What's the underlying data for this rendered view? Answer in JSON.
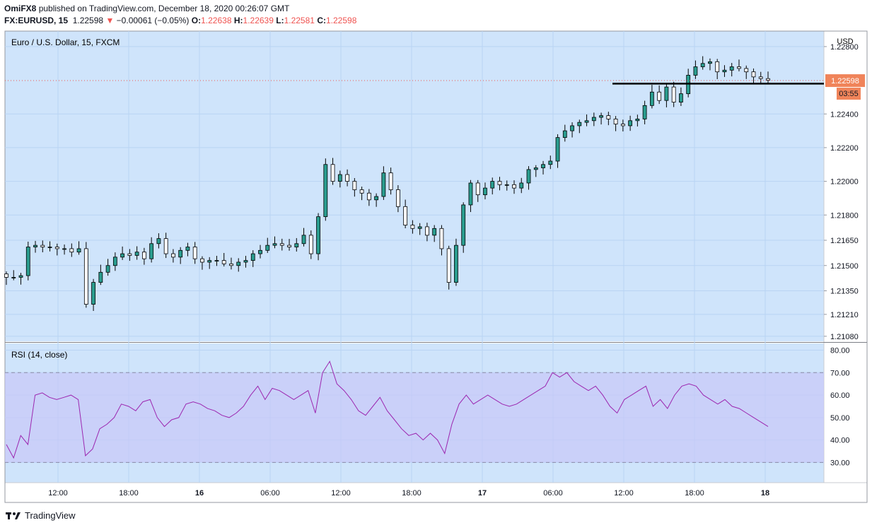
{
  "header": {
    "line1": {
      "user": "OmiFX8",
      "rest": " published on TradingView.com, December 18, 2020 00:26:07 GMT"
    },
    "line2": {
      "symbol": "FX:EURUSD, 15",
      "price": "1.22598",
      "arrow": "▼",
      "change": "−0.00061 (−0.05%)",
      "o_label": "O:",
      "o": "1.22638",
      "h_label": "H:",
      "h": "1.22639",
      "l_label": "L:",
      "l": "1.22581",
      "c_label": "C:",
      "c": "1.22598"
    }
  },
  "footer": {
    "brand": "TradingView"
  },
  "colors": {
    "bg": "#cfe4fb",
    "grid": "#b9d4f3",
    "candle_up": "#2a9d8f",
    "candle_wick": "#000000",
    "rsi_line": "#9c27b0",
    "rsi_band": "#c8c8f8",
    "price_badge": "#f0845a",
    "axis_text": "#131722"
  },
  "chart_data": [
    {
      "type": "candlestick",
      "title": "Euro / U.S. Dollar, 15, FXCM",
      "currency": "USD",
      "ylim": [
        1.2105,
        1.2285
      ],
      "y_ticks": [
        "1.22800",
        "1.22400",
        "1.22200",
        "1.22000",
        "1.21800",
        "1.21650",
        "1.21500",
        "1.21350",
        "1.21210",
        "1.21080"
      ],
      "x_ticks": [
        "12:00",
        "18:00",
        "16",
        "06:00",
        "12:00",
        "18:00",
        "17",
        "06:00",
        "12:00",
        "18:00",
        "18"
      ],
      "last_price": "1.22598",
      "countdown": "03:55",
      "horizontal_line": 1.2258,
      "close_path": [
        1.2143,
        1.2143,
        1.2144,
        1.2161,
        1.2162,
        1.2161,
        1.2161,
        1.216,
        1.216,
        1.2158,
        1.216,
        1.2127,
        1.214,
        1.2146,
        1.215,
        1.2155,
        1.2157,
        1.2156,
        1.2158,
        1.2154,
        1.2163,
        1.2166,
        1.2157,
        1.2155,
        1.2159,
        1.2161,
        1.2154,
        1.2152,
        1.2153,
        1.2153,
        1.2151,
        1.215,
        1.2152,
        1.2153,
        1.2157,
        1.2159,
        1.2162,
        1.2163,
        1.2162,
        1.2161,
        1.2163,
        1.2168,
        1.2157,
        1.2179,
        1.221,
        1.22,
        1.2204,
        1.22,
        1.2195,
        1.2193,
        1.2189,
        1.2191,
        1.2205,
        1.2195,
        1.2185,
        1.2174,
        1.2172,
        1.2173,
        1.2168,
        1.2172,
        1.216,
        1.214,
        1.2162,
        1.2186,
        1.2199,
        1.2192,
        1.2196,
        1.22,
        1.2198,
        1.2198,
        1.2196,
        1.2199,
        1.2207,
        1.2208,
        1.221,
        1.2212,
        1.2226,
        1.223,
        1.2233,
        1.2235,
        1.2236,
        1.2238,
        1.2239,
        1.2237,
        1.2234,
        1.2233,
        1.2236,
        1.2237,
        1.2245,
        1.2253,
        1.2248,
        1.2256,
        1.2247,
        1.2252,
        1.2263,
        1.2268,
        1.227,
        1.2271,
        1.2265,
        1.2266,
        1.2268,
        1.2267,
        1.2265,
        1.2262,
        1.2261,
        1.226
      ]
    },
    {
      "type": "line",
      "title": "RSI (14, close)",
      "ylim": [
        21,
        83
      ],
      "y_ticks": [
        "80.00",
        "70.00",
        "60.00",
        "50.00",
        "40.00",
        "30.00"
      ],
      "band": [
        30,
        70
      ],
      "values": [
        38,
        32,
        42,
        38,
        60,
        61,
        59,
        58,
        59,
        60,
        58,
        33,
        36,
        45,
        47,
        50,
        56,
        55,
        53,
        57,
        58,
        50,
        46,
        49,
        50,
        56,
        57,
        56,
        54,
        53,
        51,
        50,
        52,
        55,
        60,
        64,
        58,
        63,
        62,
        60,
        58,
        60,
        62,
        52,
        70,
        75,
        65,
        62,
        58,
        53,
        51,
        55,
        59,
        53,
        49,
        45,
        42,
        43,
        40,
        43,
        40,
        34,
        47,
        56,
        60,
        56,
        58,
        60,
        58,
        56,
        55,
        56,
        58,
        60,
        62,
        64,
        70,
        68,
        70,
        66,
        64,
        62,
        64,
        60,
        55,
        52,
        58,
        60,
        62,
        64,
        55,
        58,
        54,
        60,
        64,
        65,
        64,
        60,
        58,
        56,
        58,
        55,
        54,
        52,
        50,
        48,
        46
      ]
    }
  ]
}
